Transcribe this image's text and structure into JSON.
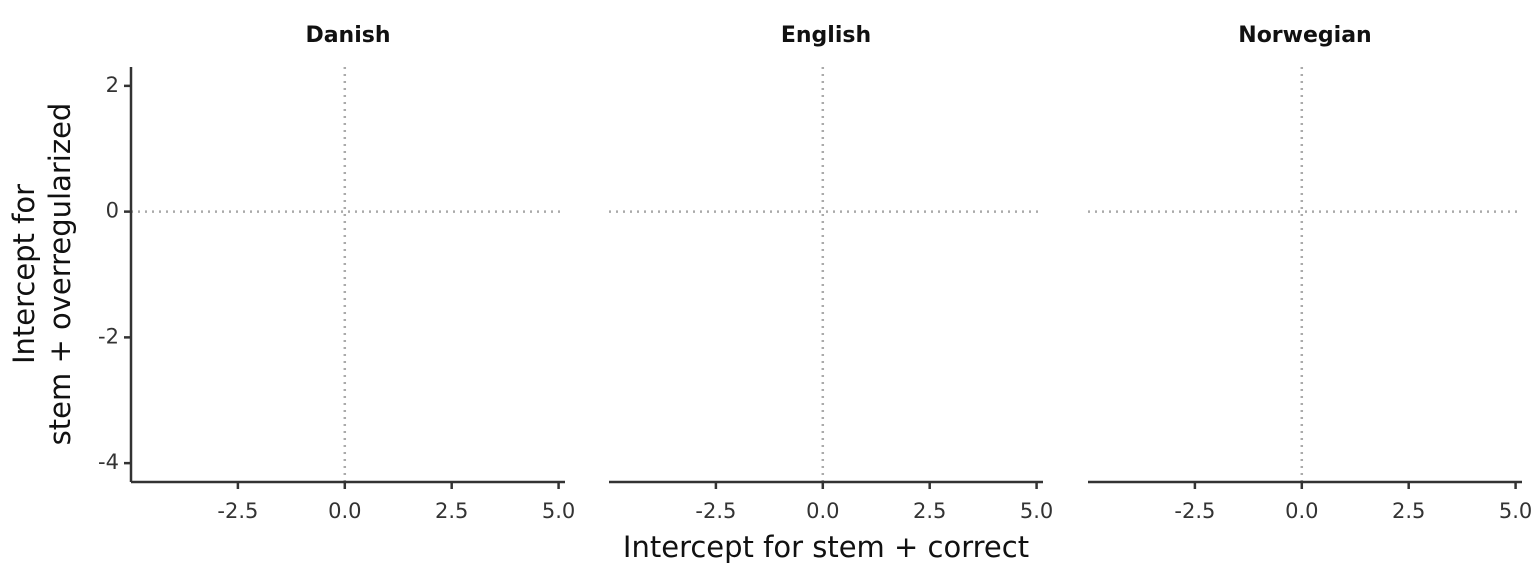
{
  "chart_data": [
    {
      "type": "scatter",
      "title": "Danish",
      "ylabel": [
        "Intercept for",
        "stem + overregularized"
      ],
      "xlim": [
        -5,
        5.15
      ],
      "xticks": [
        -2.5,
        {
          "value": 0,
          "label": "0.0"
        },
        2.5,
        {
          "value": 5,
          "label": "5.0"
        }
      ],
      "ylim": [
        -4.3,
        2.3
      ],
      "yticks": [
        2,
        0,
        -2,
        -4
      ],
      "hline": 0,
      "vline": 0
    },
    {
      "type": "scatter",
      "title": "English",
      "xlabel": "Intercept for stem + correct",
      "xlim": [
        -5,
        5.15
      ],
      "xticks": [
        -2.5,
        {
          "value": 0,
          "label": "0.0"
        },
        2.5,
        {
          "value": 5,
          "label": "5.0"
        }
      ],
      "ylim": [
        -4.3,
        2.3
      ],
      "hline": 0,
      "vline": 0
    },
    {
      "type": "scatter",
      "title": "Norwegian",
      "xlim": [
        -5,
        5.15
      ],
      "xticks": [
        -2.5,
        {
          "value": 0,
          "label": "0.0"
        },
        2.5,
        {
          "value": 5,
          "label": "5.0"
        }
      ],
      "ylim": [
        -4.3,
        2.3
      ],
      "hline": 0,
      "vline": 0
    }
  ]
}
